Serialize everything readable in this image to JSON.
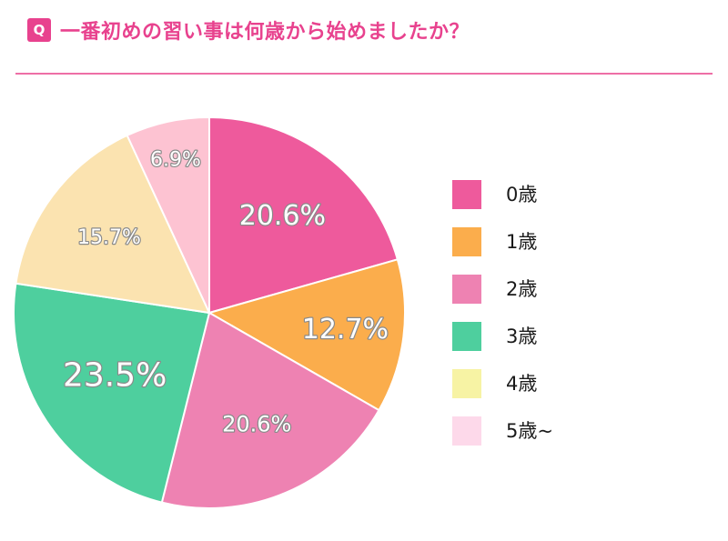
{
  "header": {
    "badge": "Q",
    "title": "一番初めの習い事は何歳から始めましたか？"
  },
  "colors": {
    "accent": "#e8428e",
    "rule": "#ee6fa6"
  },
  "chart_data": {
    "type": "pie",
    "categories": [
      "0歳",
      "1歳",
      "2歳",
      "3歳",
      "4歳",
      "5歳~"
    ],
    "values": [
      20.6,
      12.7,
      20.6,
      23.5,
      15.7,
      6.9
    ],
    "labels": [
      "20.6%",
      "12.7%",
      "20.6%",
      "23.5%",
      "15.7%",
      "6.9%"
    ],
    "slice_colors": [
      "#ee5a9c",
      "#fbad4c",
      "#ee82b2",
      "#4ecf9e",
      "#fbe3b0",
      "#fdc3d2"
    ],
    "legend_colors": [
      "#ee5a9c",
      "#fbad4c",
      "#ee82b2",
      "#4ecf9e",
      "#f7f3a4",
      "#fdd9ea"
    ],
    "legend": [
      "0歳",
      "1歳",
      "2歳",
      "3歳",
      "4歳",
      "5歳~"
    ],
    "legend_position": "right",
    "start": "12 o'clock",
    "direction": "clockwise"
  }
}
